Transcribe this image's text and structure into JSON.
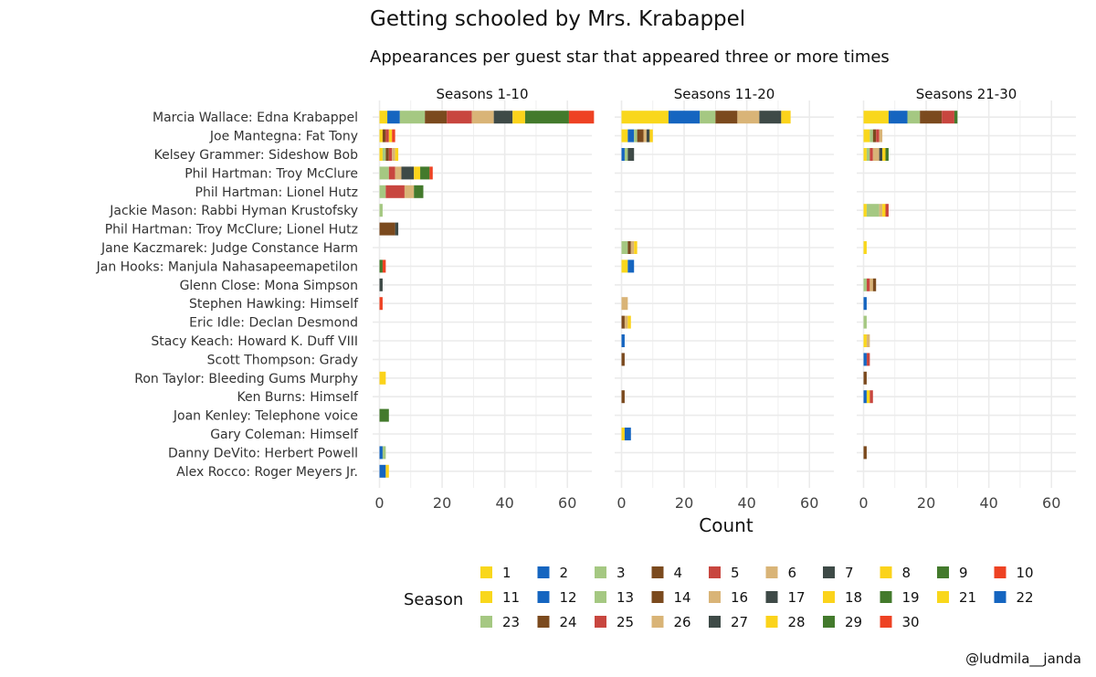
{
  "title": "Getting schooled by Mrs. Krabappel",
  "subtitle": "Appearances per guest star that appeared three or more times",
  "credit": "@ludmila__janda",
  "chart_data": {
    "type": "bar",
    "orientation": "horizontal",
    "stacked": true,
    "xlabel": "Count",
    "xlim": [
      0,
      70
    ],
    "xticks": [
      0,
      20,
      40,
      60
    ],
    "grid": true,
    "legend_title": "Season",
    "legend_position": "bottom",
    "panels": [
      "Seasons 1-10",
      "Seasons 11-20",
      "Seasons 21-30"
    ],
    "categories": [
      "Marcia Wallace: Edna Krabappel",
      "Joe Mantegna: Fat Tony",
      "Kelsey Grammer: Sideshow Bob",
      "Phil Hartman: Troy McClure",
      "Phil Hartman: Lionel Hutz",
      "Jackie Mason: Rabbi Hyman Krustofsky",
      "Phil Hartman: Troy McClure; Lionel Hutz",
      "Jane Kaczmarek: Judge Constance Harm",
      "Jan Hooks: Manjula Nahasapeemapetilon",
      "Glenn Close: Mona Simpson",
      "Stephen Hawking: Himself",
      "Eric Idle: Declan Desmond",
      "Stacy Keach: Howard K. Duff VIII",
      "Scott Thompson: Grady",
      "Ron Taylor: Bleeding Gums Murphy",
      "Ken Burns: Himself",
      "Joan Kenley: Telephone voice",
      "Gary Coleman: Himself",
      "Danny DeVito: Herbert Powell",
      "Alex Rocco: Roger Meyers Jr."
    ],
    "legend": [
      {
        "season": "1",
        "color": "#F9D71C"
      },
      {
        "season": "2",
        "color": "#1565C0"
      },
      {
        "season": "3",
        "color": "#A5C882"
      },
      {
        "season": "4",
        "color": "#7B4A1E"
      },
      {
        "season": "5",
        "color": "#C8463F"
      },
      {
        "season": "6",
        "color": "#D9B477"
      },
      {
        "season": "7",
        "color": "#3E4A47"
      },
      {
        "season": "8",
        "color": "#FBD31B"
      },
      {
        "season": "9",
        "color": "#437A2C"
      },
      {
        "season": "10",
        "color": "#EE4223"
      },
      {
        "season": "11",
        "color": "#F9D71C"
      },
      {
        "season": "12",
        "color": "#1565C0"
      },
      {
        "season": "13",
        "color": "#A5C882"
      },
      {
        "season": "14",
        "color": "#7B4A1E"
      },
      {
        "season": "16",
        "color": "#D9B477"
      },
      {
        "season": "17",
        "color": "#3E4A47"
      },
      {
        "season": "18",
        "color": "#FBD31B"
      },
      {
        "season": "19",
        "color": "#437A2C"
      },
      {
        "season": "21",
        "color": "#F9D71C"
      },
      {
        "season": "22",
        "color": "#1565C0"
      },
      {
        "season": "23",
        "color": "#A5C882"
      },
      {
        "season": "24",
        "color": "#7B4A1E"
      },
      {
        "season": "25",
        "color": "#C8463F"
      },
      {
        "season": "26",
        "color": "#D9B477"
      },
      {
        "season": "27",
        "color": "#3E4A47"
      },
      {
        "season": "28",
        "color": "#FBD31B"
      },
      {
        "season": "29",
        "color": "#437A2C"
      },
      {
        "season": "30",
        "color": "#EE4223"
      }
    ],
    "series": [
      [
        [
          [
            "1",
            2.5
          ],
          [
            "2",
            4
          ],
          [
            "3",
            8
          ],
          [
            "4",
            7
          ],
          [
            "5",
            8
          ],
          [
            "6",
            7
          ],
          [
            "7",
            6
          ],
          [
            "8",
            4
          ],
          [
            "9",
            14
          ],
          [
            "10",
            8
          ]
        ],
        [
          [
            "1",
            1
          ],
          [
            "4",
            1
          ],
          [
            "5",
            1
          ],
          [
            "8",
            1
          ],
          [
            "10",
            1
          ]
        ],
        [
          [
            "1",
            1
          ],
          [
            "3",
            1
          ],
          [
            "4",
            1
          ],
          [
            "5",
            1
          ],
          [
            "6",
            1
          ],
          [
            "8",
            1
          ]
        ],
        [
          [
            "3",
            3
          ],
          [
            "5",
            2
          ],
          [
            "6",
            2
          ],
          [
            "7",
            4
          ],
          [
            "8",
            2
          ],
          [
            "9",
            3
          ],
          [
            "10",
            1
          ]
        ],
        [
          [
            "3",
            2
          ],
          [
            "5",
            6
          ],
          [
            "6",
            3
          ],
          [
            "9",
            3
          ]
        ],
        [
          [
            "3",
            1
          ]
        ],
        [
          [
            "4",
            5
          ],
          [
            "7",
            1
          ]
        ],
        [],
        [
          [
            "9",
            1
          ],
          [
            "10",
            1
          ]
        ],
        [
          [
            "7",
            1
          ]
        ],
        [
          [
            "10",
            1
          ]
        ],
        [],
        [],
        [],
        [
          [
            "8",
            2
          ]
        ],
        [],
        [
          [
            "9",
            3
          ]
        ],
        [],
        [
          [
            "2",
            1
          ],
          [
            "3",
            1
          ]
        ],
        [
          [
            "2",
            2
          ],
          [
            "8",
            1
          ]
        ]
      ],
      [
        [
          [
            "11",
            15
          ],
          [
            "12",
            10
          ],
          [
            "13",
            5
          ],
          [
            "14",
            7
          ],
          [
            "16",
            7
          ],
          [
            "17",
            7
          ],
          [
            "18",
            3
          ]
        ],
        [
          [
            "11",
            2
          ],
          [
            "12",
            2
          ],
          [
            "13",
            1
          ],
          [
            "14",
            2
          ],
          [
            "16",
            1
          ],
          [
            "17",
            1
          ],
          [
            "18",
            1
          ]
        ],
        [
          [
            "12",
            1
          ],
          [
            "13",
            1
          ],
          [
            "17",
            2
          ]
        ],
        [],
        [],
        [],
        [],
        [
          [
            "13",
            2
          ],
          [
            "14",
            1
          ],
          [
            "16",
            1
          ],
          [
            "18",
            1
          ]
        ],
        [
          [
            "11",
            2
          ],
          [
            "12",
            2
          ]
        ],
        [],
        [
          [
            "16",
            2
          ]
        ],
        [
          [
            "14",
            1
          ],
          [
            "16",
            1
          ],
          [
            "18",
            1
          ]
        ],
        [
          [
            "12",
            1
          ]
        ],
        [
          [
            "14",
            1
          ]
        ],
        [],
        [
          [
            "14",
            1
          ]
        ],
        [],
        [
          [
            "18",
            1
          ],
          [
            "12",
            2
          ]
        ],
        [],
        []
      ],
      [
        [
          [
            "21",
            8
          ],
          [
            "22",
            6
          ],
          [
            "23",
            4
          ],
          [
            "24",
            7
          ],
          [
            "25",
            4
          ],
          [
            "29",
            1
          ]
        ],
        [
          [
            "21",
            2
          ],
          [
            "23",
            1
          ],
          [
            "24",
            1
          ],
          [
            "25",
            1
          ],
          [
            "26",
            1
          ]
        ],
        [
          [
            "21",
            1
          ],
          [
            "23",
            1
          ],
          [
            "25",
            1
          ],
          [
            "26",
            2
          ],
          [
            "27",
            1
          ],
          [
            "28",
            1
          ],
          [
            "29",
            1
          ]
        ],
        [],
        [],
        [
          [
            "21",
            1
          ],
          [
            "23",
            4
          ],
          [
            "26",
            1
          ],
          [
            "28",
            1
          ],
          [
            "25",
            1
          ]
        ],
        [],
        [
          [
            "21",
            1
          ]
        ],
        [],
        [
          [
            "23",
            1
          ],
          [
            "25",
            1
          ],
          [
            "26",
            1
          ],
          [
            "24",
            1
          ]
        ],
        [
          [
            "22",
            1
          ]
        ],
        [
          [
            "23",
            1
          ]
        ],
        [
          [
            "21",
            1
          ],
          [
            "26",
            1
          ]
        ],
        [
          [
            "22",
            1
          ],
          [
            "25",
            1
          ]
        ],
        [
          [
            "24",
            1
          ]
        ],
        [
          [
            "22",
            1
          ],
          [
            "21",
            1
          ],
          [
            "25",
            1
          ]
        ],
        [],
        [],
        [
          [
            "24",
            1
          ]
        ],
        []
      ]
    ]
  }
}
